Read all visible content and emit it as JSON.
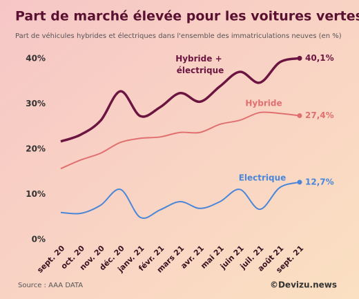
{
  "chart_data": {
    "type": "line",
    "title": "Part de marché élevée pour les voitures vertes",
    "subtitle": "Part de véhicules hybrides et électriques dans l'ensemble des immatriculations neuves (en %)",
    "source": "Source : AAA DATA",
    "credit": "©Devizu.news",
    "categories": [
      "sept. 20",
      "oct. 20",
      "nov. 20",
      "déc. 20",
      "janv. 21",
      "févr. 21",
      "mars 21",
      "avr. 21",
      "mai 21",
      "juin 21",
      "juil. 21",
      "août 21",
      "sept. 21"
    ],
    "series": [
      {
        "name": "Hybride + électrique",
        "color": "#6b1540",
        "values": [
          21.7,
          23.2,
          26.3,
          32.8,
          27.3,
          29.3,
          32.4,
          30.5,
          33.9,
          37.1,
          34.7,
          39.2,
          40.1
        ],
        "value_labels": [
          null,
          null,
          null,
          null,
          null,
          null,
          null,
          null,
          null,
          null,
          null,
          null,
          "40,1%"
        ]
      },
      {
        "name": "Hybride",
        "color": "#e07070",
        "values": [
          15.7,
          17.6,
          19.1,
          21.5,
          22.4,
          22.7,
          23.7,
          23.7,
          25.5,
          26.4,
          28.1,
          27.9,
          27.4
        ],
        "value_labels": [
          null,
          null,
          null,
          null,
          null,
          null,
          null,
          null,
          null,
          null,
          null,
          null,
          "27,4%"
        ]
      },
      {
        "name": "Electrique",
        "color": "#4a86d8",
        "values": [
          6.0,
          5.8,
          7.6,
          11.1,
          4.9,
          6.6,
          8.4,
          6.9,
          8.4,
          11.1,
          6.7,
          11.5,
          12.7
        ],
        "value_labels": [
          null,
          null,
          null,
          null,
          null,
          null,
          null,
          null,
          null,
          null,
          null,
          null,
          "12,7%"
        ]
      }
    ],
    "ylim": [
      0,
      40
    ],
    "yticks": [
      {
        "value": 0,
        "label": "0%"
      },
      {
        "value": 10,
        "label": "10%"
      },
      {
        "value": 20,
        "label": "20%"
      },
      {
        "value": 30,
        "label": "30%"
      },
      {
        "value": 40,
        "label": "40%"
      }
    ],
    "grid": false
  }
}
